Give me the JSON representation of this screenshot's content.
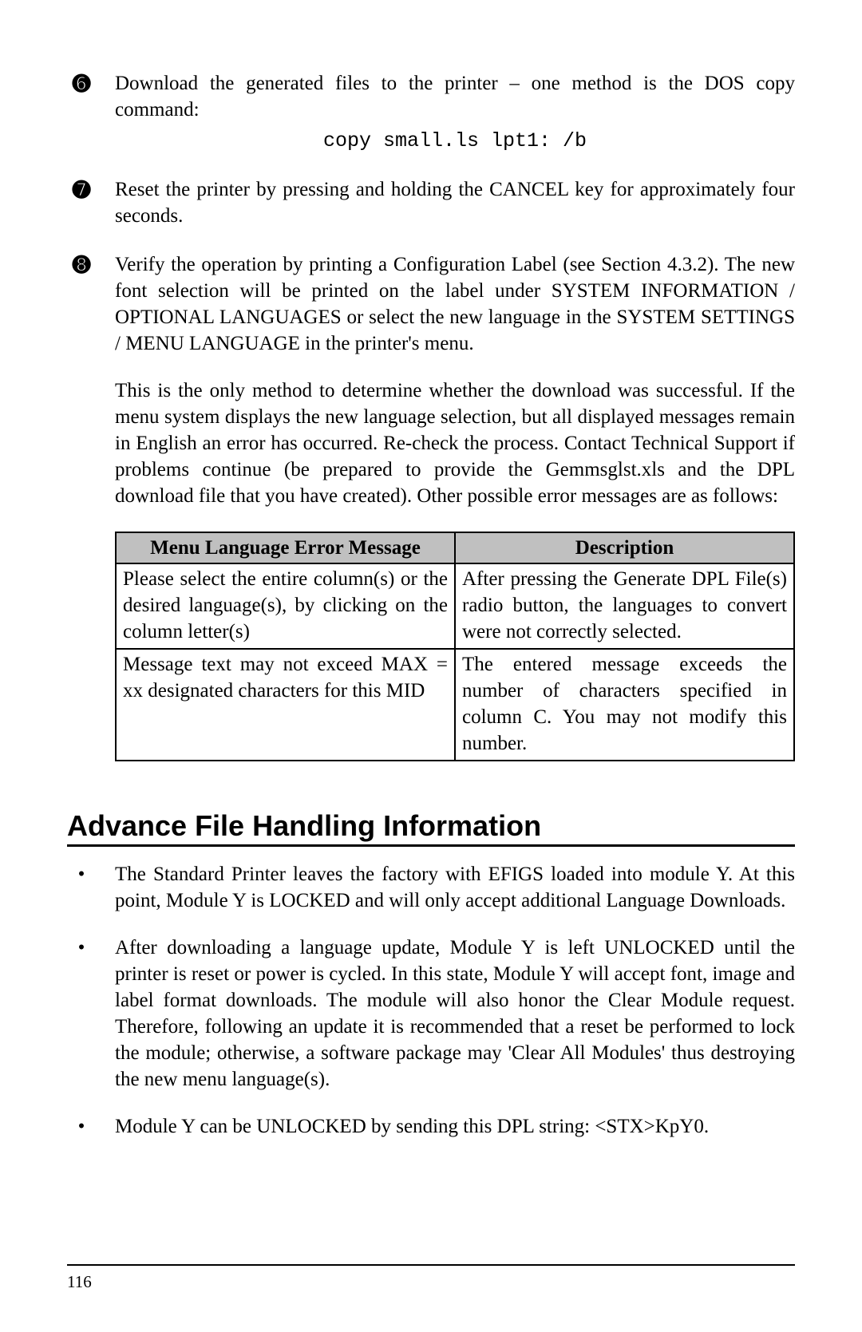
{
  "steps": [
    {
      "num": "➏",
      "paras": [
        "Download the generated files to the printer – one method is the DOS copy command:"
      ],
      "code": "copy small.ls lpt1: /b"
    },
    {
      "num": "➐",
      "paras": [
        "Reset the printer by pressing and holding the CANCEL key for approximately four seconds."
      ]
    },
    {
      "num": "➑",
      "paras": [
        "Verify the operation by printing a Configuration Label (see Section 4.3.2). The new font selection will be printed on the label under SYSTEM INFORMATION / OPTIONAL LANGUAGES or select the new language in the SYSTEM SETTINGS / MENU LANGUAGE in the printer's menu.",
        "This is the only method to determine whether the download was successful. If the menu system displays the new language selection, but all displayed messages remain in English an error has occurred. Re-check the process. Contact Technical Support if problems continue (be prepared to provide the Gemmsglst.xls and the DPL download file that you have created). Other possible error messages are as follows:"
      ]
    }
  ],
  "errorTable": {
    "headers": [
      "Menu Language Error Message",
      "Description"
    ],
    "rows": [
      [
        "Please select the entire column(s) or the desired language(s), by clicking on the column letter(s)",
        "After pressing the Generate DPL File(s) radio button, the languages to convert were not correctly selected."
      ],
      [
        "Message text may not exceed MAX = xx designated characters for this MID",
        "The entered message exceeds the number of characters specified in column C. You may not modify this number."
      ]
    ]
  },
  "section": {
    "title": "Advance File Handling Information",
    "bullets": [
      "The Standard Printer leaves the factory with EFIGS loaded into module Y. At this point, Module Y is LOCKED and will only accept additional Language Downloads.",
      "After downloading a language update, Module Y is left UNLOCKED until the printer is reset or power is cycled. In this state, Module Y will accept font, image and label format downloads. The module will also honor the Clear Module request. Therefore, following an update it is recommended that a reset be performed to lock the module; otherwise, a software package may 'Clear All Modules' thus destroying the new menu language(s).",
      "Module Y can be UNLOCKED by sending this DPL string:   <STX>KpY0."
    ]
  },
  "pageNumber": "116",
  "style": {
    "bodyFontSizePx": 25,
    "titleFontSizePx": 36,
    "pageNumFontSizePx": 21,
    "headerBg": "#c0c0c0",
    "borderColor": "#000000",
    "pageBg": "#ffffff",
    "textColor": "#000000"
  }
}
